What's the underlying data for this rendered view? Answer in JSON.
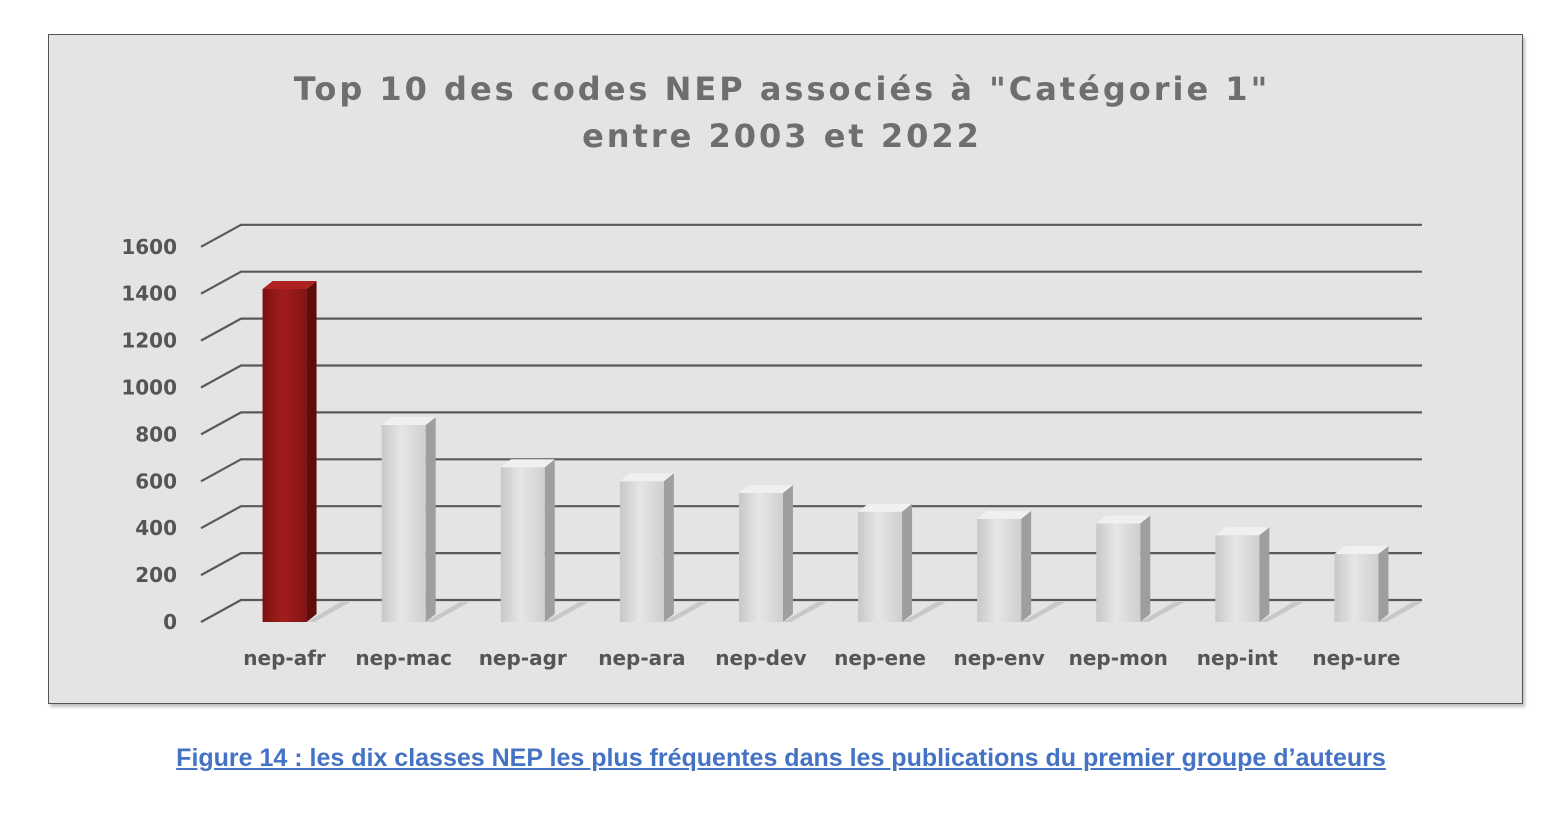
{
  "chart_data": {
    "type": "bar",
    "title_lines": [
      "Top 10 des codes NEP associés à \"Catégorie 1\"",
      "entre 2003 et 2022"
    ],
    "categories": [
      "nep-afr",
      "nep-mac",
      "nep-agr",
      "nep-ara",
      "nep-dev",
      "nep-ene",
      "nep-env",
      "nep-mon",
      "nep-int",
      "nep-ure"
    ],
    "values": [
      1420,
      840,
      660,
      600,
      550,
      470,
      440,
      420,
      370,
      290
    ],
    "yticks": [
      "0",
      "200",
      "400",
      "600",
      "800",
      "1000",
      "1200",
      "1400",
      "1600"
    ],
    "ylim": [
      0,
      1600
    ],
    "grid": true,
    "legend": "none",
    "style": "3d-column",
    "highlight_index": 0,
    "colors": {
      "highlight": "#8b1a1a",
      "bar": "#d9d9d9",
      "background": "#e4e4e4",
      "grid": "#595959"
    }
  },
  "caption": "Figure 14 : les dix classes NEP les plus fréquentes dans les publications du premier groupe d’auteurs"
}
